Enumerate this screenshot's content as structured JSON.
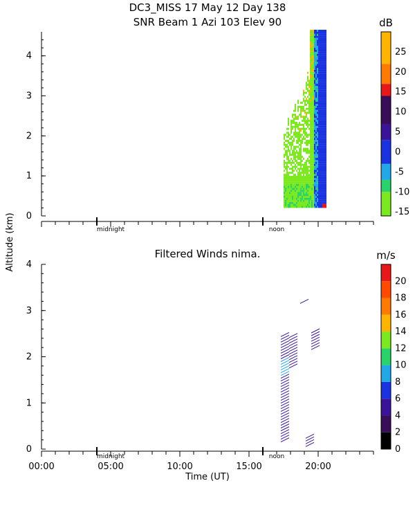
{
  "chart_data": [
    {
      "type": "heatmap",
      "title": "DC3_MISS  17 May 12 Day 138",
      "subtitle": "SNR Beam 1 Azi 103 Elev 90",
      "ylabel": "Altitude (km)",
      "ylim": [
        0,
        4.6
      ],
      "xlim": [
        0,
        24
      ],
      "y_ticks": [
        "0",
        "1",
        "2",
        "3",
        "4"
      ],
      "x_markers": [
        "midnight",
        "noon"
      ],
      "colorbar": {
        "unit": "dB",
        "range": [
          -16,
          30
        ],
        "bands": [
          {
            "from": -16,
            "to": -10,
            "color": "#7ce81e"
          },
          {
            "from": -10,
            "to": -7,
            "color": "#2ad36a"
          },
          {
            "from": -7,
            "to": -3,
            "color": "#22a8e6"
          },
          {
            "from": -3,
            "to": 3,
            "color": "#1a33e0"
          },
          {
            "from": 3,
            "to": 7,
            "color": "#3a1398"
          },
          {
            "from": 7,
            "to": 14,
            "color": "#3a0d58"
          },
          {
            "from": 14,
            "to": 17,
            "color": "#e81818"
          },
          {
            "from": 17,
            "to": 22,
            "color": "#ff7a00"
          },
          {
            "from": 22,
            "to": 30,
            "color": "#ffb400"
          }
        ],
        "tick_labels": [
          "25",
          "20",
          "15",
          "10",
          "5",
          "0",
          "-5",
          "-10",
          "-15"
        ],
        "tick_values": [
          25,
          20,
          15,
          10,
          5,
          0,
          -5,
          -10,
          -15
        ]
      },
      "data_window": {
        "start_hour": 17.5,
        "end_hour": 20.6,
        "min_alt_km": 0.2,
        "max_alt_km": 4.6
      }
    },
    {
      "type": "scatter",
      "title": "Filtered Winds nima.",
      "xlabel": "Time (UT)",
      "ylim": [
        0,
        4
      ],
      "xlim": [
        0,
        24
      ],
      "y_ticks": [
        "0",
        "1",
        "2",
        "3",
        "4"
      ],
      "x_ticks": [
        "00:00",
        "05:00",
        "10:00",
        "15:00",
        "20:00"
      ],
      "x_tick_values": [
        0,
        5,
        10,
        15,
        20
      ],
      "x_markers": [
        "midnight",
        "noon"
      ],
      "colorbar": {
        "unit": "m/s",
        "range": [
          0,
          22
        ],
        "colors": [
          "#000000",
          "#3a0d58",
          "#3a1398",
          "#1a33e0",
          "#22a8e6",
          "#2ad36a",
          "#7ce81e",
          "#ffb400",
          "#ff7a00",
          "#ff4a00",
          "#e81818"
        ],
        "tick_labels": [
          "0",
          "2",
          "4",
          "6",
          "8",
          "10",
          "12",
          "14",
          "16",
          "18",
          "20"
        ],
        "tick_values": [
          0,
          2,
          4,
          6,
          8,
          10,
          12,
          14,
          16,
          18,
          20
        ]
      },
      "wind_columns": [
        {
          "hour": 17.6,
          "from_km": 0.2,
          "to_km": 2.5
        },
        {
          "hour": 18.2,
          "from_km": 1.8,
          "to_km": 2.5
        },
        {
          "hour": 19.4,
          "from_km": 0.1,
          "to_km": 0.3
        },
        {
          "hour": 19.8,
          "from_km": 2.2,
          "to_km": 2.6
        },
        {
          "hour": 19.0,
          "from_km": 3.2,
          "to_km": 3.25
        }
      ]
    }
  ]
}
